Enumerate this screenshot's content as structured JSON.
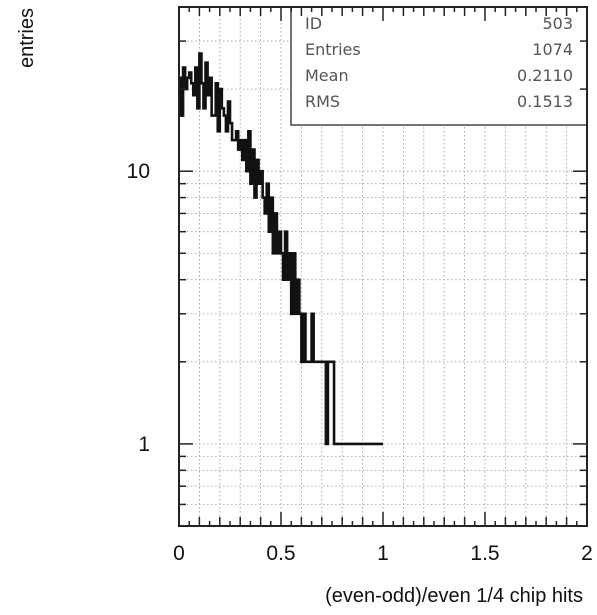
{
  "chart_data": {
    "type": "histogram",
    "xlabel": "(even-odd)/even  1/4 chip hits",
    "ylabel": "entries",
    "yscale": "log",
    "xlim": [
      0,
      2
    ],
    "ylim": [
      0.5,
      40
    ],
    "x_ticks": [
      {
        "value": 0,
        "label": "0"
      },
      {
        "value": 0.5,
        "label": "0.5"
      },
      {
        "value": 1,
        "label": "1"
      },
      {
        "value": 1.5,
        "label": "1.5"
      },
      {
        "value": 2,
        "label": "2"
      }
    ],
    "y_ticks": [
      {
        "value": 1,
        "label": "1"
      },
      {
        "value": 10,
        "label": "10"
      }
    ],
    "grid": true,
    "stats_box": {
      "position": "top-right",
      "rows": [
        {
          "label": "ID",
          "value": "503"
        },
        {
          "label": "Entries",
          "value": "1074"
        },
        {
          "label": "Mean",
          "value": "0.2110"
        },
        {
          "label": "RMS",
          "value": "0.1513"
        }
      ]
    },
    "bins": {
      "x0": 0,
      "width": 0.01,
      "counts": [
        22,
        16,
        24,
        20,
        22,
        23,
        21,
        19,
        24,
        17,
        27,
        21,
        17,
        25,
        19,
        22,
        16,
        16,
        21,
        14,
        20,
        17,
        16,
        14,
        18,
        15,
        13,
        13,
        14,
        12,
        13,
        11,
        13,
        10,
        14,
        9,
        12,
        8,
        11,
        9,
        10,
        8,
        7,
        9,
        6,
        8,
        5,
        7,
        5,
        6,
        5,
        4,
        6,
        4,
        5,
        3,
        5,
        3,
        4,
        3,
        2,
        3,
        2,
        2,
        2,
        3,
        2,
        2,
        2,
        2,
        2,
        2,
        1,
        2,
        2,
        2,
        1,
        1,
        1,
        1,
        1,
        1,
        1,
        1,
        1,
        1,
        1,
        1,
        1,
        1,
        1,
        1,
        1,
        1,
        1,
        1,
        1,
        1,
        1,
        1
      ]
    }
  }
}
